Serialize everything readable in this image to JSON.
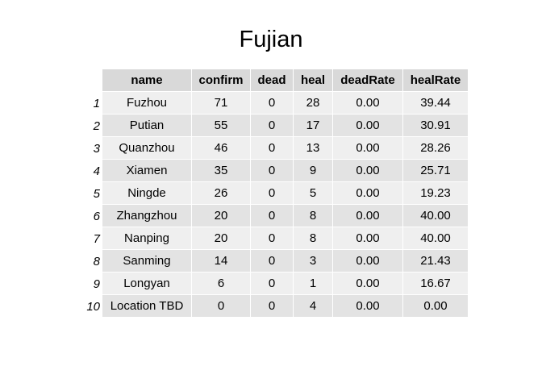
{
  "chart_data": {
    "type": "table",
    "title": "Fujian",
    "columns": [
      "name",
      "confirm",
      "dead",
      "heal",
      "deadRate",
      "healRate"
    ],
    "rows": [
      {
        "index": "1",
        "cells": [
          "Fuzhou",
          "71",
          "0",
          "28",
          "0.00",
          "39.44"
        ]
      },
      {
        "index": "2",
        "cells": [
          "Putian",
          "55",
          "0",
          "17",
          "0.00",
          "30.91"
        ]
      },
      {
        "index": "3",
        "cells": [
          "Quanzhou",
          "46",
          "0",
          "13",
          "0.00",
          "28.26"
        ]
      },
      {
        "index": "4",
        "cells": [
          "Xiamen",
          "35",
          "0",
          "9",
          "0.00",
          "25.71"
        ]
      },
      {
        "index": "5",
        "cells": [
          "Ningde",
          "26",
          "0",
          "5",
          "0.00",
          "19.23"
        ]
      },
      {
        "index": "6",
        "cells": [
          "Zhangzhou",
          "20",
          "0",
          "8",
          "0.00",
          "40.00"
        ]
      },
      {
        "index": "7",
        "cells": [
          "Nanping",
          "20",
          "0",
          "8",
          "0.00",
          "40.00"
        ]
      },
      {
        "index": "8",
        "cells": [
          "Sanming",
          "14",
          "0",
          "3",
          "0.00",
          "21.43"
        ]
      },
      {
        "index": "9",
        "cells": [
          "Longyan",
          "6",
          "0",
          "1",
          "0.00",
          "16.67"
        ]
      },
      {
        "index": "10",
        "cells": [
          "Location TBD",
          "0",
          "0",
          "4",
          "0.00",
          "0.00"
        ]
      }
    ],
    "colors": {
      "header_bg": "#d9d9d9",
      "row_odd_bg": "#efefef",
      "row_even_bg": "#e3e3e3"
    }
  }
}
